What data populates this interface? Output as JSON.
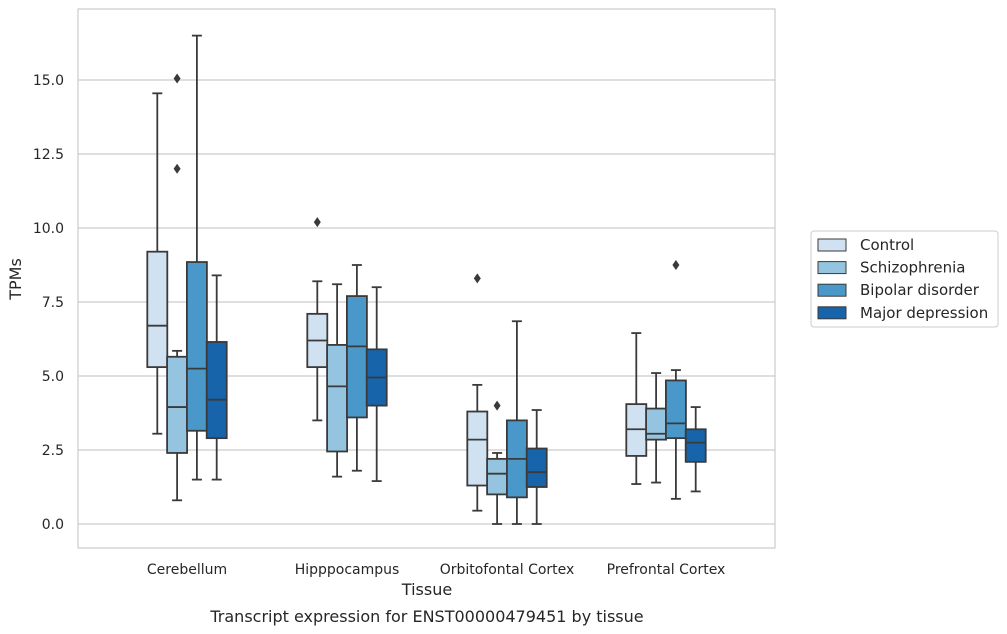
{
  "chart_data": {
    "type": "box",
    "xlabel": "Tissue",
    "ylabel": "TPMs",
    "caption": "Transcript expression for ENST00000479451 by tissue",
    "categories": [
      "Cerebellum",
      "Hipppocampus",
      "Orbitofontal Cortex",
      "Prefrontal Cortex"
    ],
    "ylim": [
      -0.8,
      17.3
    ],
    "yticks": [
      "0.0",
      "2.5",
      "5.0",
      "7.5",
      "10.0",
      "12.5",
      "15.0"
    ],
    "grid": true,
    "legend_position": "right",
    "series": [
      {
        "name": "Control",
        "color": "#d0e1f2"
      },
      {
        "name": "Schizophrenia",
        "color": "#94c4df"
      },
      {
        "name": "Bipolar disorder",
        "color": "#4a98c9"
      },
      {
        "name": "Major depression",
        "color": "#1764ab"
      }
    ],
    "boxes": [
      [
        {
          "whislo": 3.05,
          "q1": 5.3,
          "med": 6.7,
          "q3": 9.2,
          "whishi": 14.55,
          "fliers": []
        },
        {
          "whislo": 0.8,
          "q1": 2.4,
          "med": 3.95,
          "q3": 5.65,
          "whishi": 5.85,
          "fliers": [
            15.05,
            12.0
          ]
        },
        {
          "whislo": 1.5,
          "q1": 3.15,
          "med": 5.25,
          "q3": 8.85,
          "whishi": 16.5,
          "fliers": []
        },
        {
          "whislo": 1.5,
          "q1": 2.9,
          "med": 4.2,
          "q3": 6.15,
          "whishi": 8.4,
          "fliers": []
        }
      ],
      [
        {
          "whislo": 3.5,
          "q1": 5.3,
          "med": 6.2,
          "q3": 7.1,
          "whishi": 8.2,
          "fliers": [
            10.2
          ]
        },
        {
          "whislo": 1.6,
          "q1": 2.45,
          "med": 4.65,
          "q3": 6.05,
          "whishi": 8.1,
          "fliers": []
        },
        {
          "whislo": 1.8,
          "q1": 3.6,
          "med": 6.0,
          "q3": 7.7,
          "whishi": 8.75,
          "fliers": []
        },
        {
          "whislo": 1.45,
          "q1": 4.0,
          "med": 4.95,
          "q3": 5.9,
          "whishi": 8.0,
          "fliers": []
        }
      ],
      [
        {
          "whislo": 0.45,
          "q1": 1.3,
          "med": 2.85,
          "q3": 3.8,
          "whishi": 4.7,
          "fliers": [
            8.3
          ]
        },
        {
          "whislo": 0.0,
          "q1": 1.0,
          "med": 1.7,
          "q3": 2.2,
          "whishi": 2.4,
          "fliers": [
            4.0
          ]
        },
        {
          "whislo": 0.0,
          "q1": 0.9,
          "med": 2.2,
          "q3": 3.5,
          "whishi": 6.85,
          "fliers": []
        },
        {
          "whislo": 0.0,
          "q1": 1.25,
          "med": 1.75,
          "q3": 2.55,
          "whishi": 3.85,
          "fliers": []
        }
      ],
      [
        {
          "whislo": 1.35,
          "q1": 2.3,
          "med": 3.2,
          "q3": 4.05,
          "whishi": 6.45,
          "fliers": []
        },
        {
          "whislo": 1.4,
          "q1": 2.85,
          "med": 3.05,
          "q3": 3.9,
          "whishi": 5.1,
          "fliers": []
        },
        {
          "whislo": 0.85,
          "q1": 2.9,
          "med": 3.4,
          "q3": 4.85,
          "whishi": 5.2,
          "fliers": [
            8.75
          ]
        },
        {
          "whislo": 1.1,
          "q1": 2.1,
          "med": 2.75,
          "q3": 3.2,
          "whishi": 3.95,
          "fliers": []
        }
      ]
    ]
  }
}
